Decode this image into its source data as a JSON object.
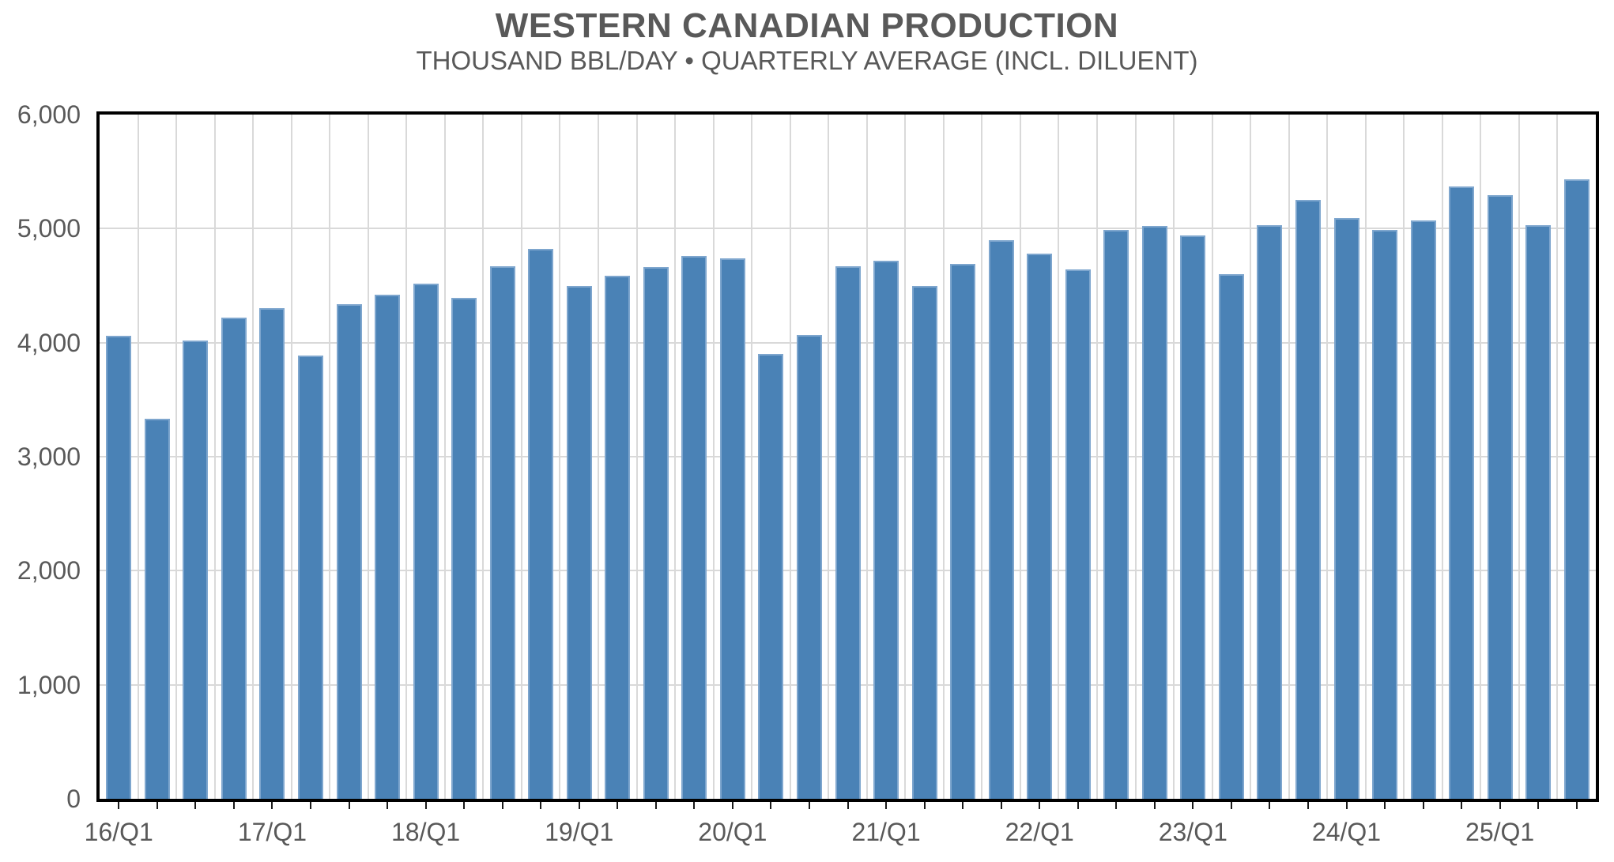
{
  "title": "WESTERN CANADIAN PRODUCTION",
  "subtitle": "THOUSAND BBL/DAY • QUARTERLY AVERAGE (INCL. DILUENT)",
  "chart_data": {
    "type": "bar",
    "title": "WESTERN CANADIAN PRODUCTION",
    "subtitle": "THOUSAND BBL/DAY • QUARTERLY AVERAGE (INCL. DILUENT)",
    "categories": [
      "16/Q1",
      "16/Q2",
      "16/Q3",
      "16/Q4",
      "17/Q1",
      "17/Q2",
      "17/Q3",
      "17/Q4",
      "18/Q1",
      "18/Q2",
      "18/Q3",
      "18/Q4",
      "19/Q1",
      "19/Q2",
      "19/Q3",
      "19/Q4",
      "20/Q1",
      "20/Q2",
      "20/Q3",
      "20/Q4",
      "21/Q1",
      "21/Q2",
      "21/Q3",
      "21/Q4",
      "22/Q1",
      "22/Q2",
      "22/Q3",
      "22/Q4",
      "23/Q1",
      "23/Q2",
      "23/Q3",
      "23/Q4",
      "24/Q1",
      "24/Q2",
      "24/Q3",
      "24/Q4",
      "25/Q1",
      "25/Q2",
      "25/Q3"
    ],
    "values": [
      4060,
      3330,
      4020,
      4220,
      4300,
      3890,
      4340,
      4420,
      4520,
      4390,
      4670,
      4820,
      4500,
      4590,
      4660,
      4760,
      4740,
      3900,
      4070,
      4670,
      4720,
      4500,
      4690,
      4900,
      4780,
      4640,
      4990,
      5020,
      4940,
      4600,
      5030,
      5250,
      5090,
      4990,
      5070,
      5370,
      5290,
      5030,
      5430
    ],
    "x_tick_labels": [
      "16/Q1",
      "17/Q1",
      "18/Q1",
      "19/Q1",
      "20/Q1",
      "21/Q1",
      "22/Q1",
      "23/Q1",
      "24/Q1",
      "25/Q1"
    ],
    "x_label_every": 4,
    "y_tick_labels": [
      "0",
      "1,000",
      "2,000",
      "3,000",
      "4,000",
      "5,000",
      "6,000"
    ],
    "y_ticks": [
      0,
      1000,
      2000,
      3000,
      4000,
      5000,
      6000
    ],
    "ylim": [
      0,
      6000
    ],
    "xlabel": "",
    "ylabel": "",
    "grid": "on",
    "legend": "none",
    "colors": {
      "bar_fill": "#4A82B6",
      "bar_edge": "#7EA6CE",
      "gridline": "#D9D9D9",
      "axis_frame": "#000000",
      "text": "#595959",
      "tick_mark": "#1A1A1A",
      "background": "#FFFFFF"
    }
  }
}
